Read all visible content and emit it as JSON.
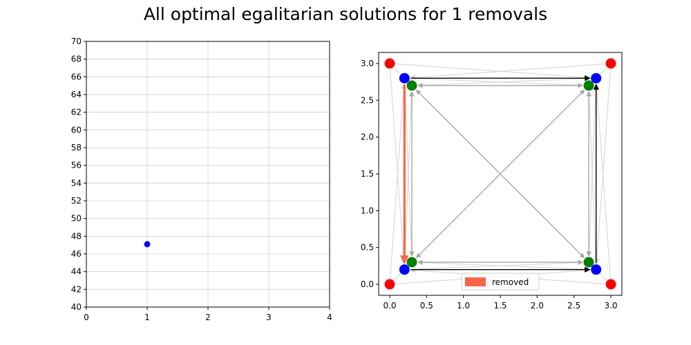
{
  "figure": {
    "title": "All optimal egalitarian solutions for 1 removals"
  },
  "colors": {
    "point": "#0000ff",
    "node_outer": "#ff0000",
    "node_mid": "#0000ff",
    "node_inner": "#008000",
    "edge_removed": "#ff6347",
    "edge_chosen": "#000000",
    "edge_light": "#d9d9d9",
    "edge_mid": "#a6a6a6",
    "grid": "#d0d0d0"
  },
  "chart_data": [
    {
      "type": "scatter",
      "title": "",
      "xlabel": "",
      "ylabel": "",
      "xlim": [
        0,
        4
      ],
      "ylim": [
        40,
        70
      ],
      "xticks": [
        "0",
        "1",
        "2",
        "3",
        "4"
      ],
      "yticks": [
        "40",
        "42",
        "44",
        "46",
        "48",
        "50",
        "52",
        "54",
        "56",
        "58",
        "60",
        "62",
        "64",
        "66",
        "68",
        "70"
      ],
      "grid": true,
      "points": [
        {
          "x": 1,
          "y": 47.1
        }
      ]
    },
    {
      "type": "network",
      "title": "",
      "xlim": [
        -0.15,
        3.15
      ],
      "ylim": [
        -0.15,
        3.15
      ],
      "xticks": [
        "0.0",
        "0.5",
        "1.0",
        "1.5",
        "2.0",
        "2.5",
        "3.0"
      ],
      "yticks": [
        "0.0",
        "0.5",
        "1.0",
        "1.5",
        "2.0",
        "2.5",
        "3.0"
      ],
      "grid": false,
      "legend": {
        "position": "bottom-center",
        "entries": [
          {
            "label": "removed",
            "color": "#ff6347"
          }
        ]
      },
      "nodes": [
        {
          "id": "r_bl",
          "group": "outer",
          "x": 0.0,
          "y": 0.0
        },
        {
          "id": "r_tl",
          "group": "outer",
          "x": 0.0,
          "y": 3.0
        },
        {
          "id": "r_tr",
          "group": "outer",
          "x": 3.0,
          "y": 3.0
        },
        {
          "id": "r_br",
          "group": "outer",
          "x": 3.0,
          "y": 0.0
        },
        {
          "id": "b_bl",
          "group": "mid",
          "x": 0.2,
          "y": 0.2
        },
        {
          "id": "b_tl",
          "group": "mid",
          "x": 0.2,
          "y": 2.8
        },
        {
          "id": "b_tr",
          "group": "mid",
          "x": 2.8,
          "y": 2.8
        },
        {
          "id": "b_br",
          "group": "mid",
          "x": 2.8,
          "y": 0.2
        },
        {
          "id": "g_bl",
          "group": "inner",
          "x": 0.3,
          "y": 0.3
        },
        {
          "id": "g_tl",
          "group": "inner",
          "x": 0.3,
          "y": 2.7
        },
        {
          "id": "g_tr",
          "group": "inner",
          "x": 2.7,
          "y": 2.7
        },
        {
          "id": "g_br",
          "group": "inner",
          "x": 2.7,
          "y": 0.3
        }
      ],
      "edges": [
        {
          "from": "b_tl",
          "to": "b_bl",
          "kind": "removed"
        },
        {
          "from": "b_tl",
          "to": "b_tr",
          "kind": "chosen"
        },
        {
          "from": "b_br",
          "to": "b_tr",
          "kind": "chosen"
        },
        {
          "from": "b_bl",
          "to": "b_br",
          "kind": "chosen"
        },
        {
          "from": "g_tl",
          "to": "g_br",
          "kind": "mid"
        },
        {
          "from": "g_br",
          "to": "g_tl",
          "kind": "mid"
        },
        {
          "from": "g_tr",
          "to": "g_bl",
          "kind": "mid"
        },
        {
          "from": "g_bl",
          "to": "g_tr",
          "kind": "mid"
        },
        {
          "from": "g_tl",
          "to": "g_tr",
          "kind": "mid"
        },
        {
          "from": "g_tr",
          "to": "g_tl",
          "kind": "mid"
        },
        {
          "from": "g_bl",
          "to": "g_br",
          "kind": "mid"
        },
        {
          "from": "g_br",
          "to": "g_bl",
          "kind": "mid"
        },
        {
          "from": "g_tl",
          "to": "g_bl",
          "kind": "mid"
        },
        {
          "from": "g_bl",
          "to": "g_tl",
          "kind": "mid"
        },
        {
          "from": "g_tr",
          "to": "g_br",
          "kind": "mid"
        },
        {
          "from": "g_br",
          "to": "g_tr",
          "kind": "mid"
        },
        {
          "from": "r_tl",
          "to": "g_tl",
          "kind": "light"
        },
        {
          "from": "r_tl",
          "to": "b_tr",
          "kind": "light"
        },
        {
          "from": "r_tl",
          "to": "b_bl",
          "kind": "light"
        },
        {
          "from": "r_tr",
          "to": "g_tr",
          "kind": "light"
        },
        {
          "from": "r_tr",
          "to": "b_tl",
          "kind": "light"
        },
        {
          "from": "r_tr",
          "to": "b_br",
          "kind": "light"
        },
        {
          "from": "r_bl",
          "to": "g_bl",
          "kind": "light"
        },
        {
          "from": "r_bl",
          "to": "b_tl",
          "kind": "light"
        },
        {
          "from": "r_bl",
          "to": "b_br",
          "kind": "light"
        },
        {
          "from": "r_br",
          "to": "g_br",
          "kind": "light"
        },
        {
          "from": "r_br",
          "to": "b_bl",
          "kind": "light"
        },
        {
          "from": "r_br",
          "to": "b_tr",
          "kind": "light"
        },
        {
          "from": "b_tl",
          "to": "g_tr",
          "kind": "light"
        },
        {
          "from": "b_tr",
          "to": "g_tl",
          "kind": "light"
        },
        {
          "from": "b_bl",
          "to": "g_br",
          "kind": "light"
        },
        {
          "from": "b_br",
          "to": "g_bl",
          "kind": "light"
        },
        {
          "from": "b_tl",
          "to": "g_bl",
          "kind": "light"
        },
        {
          "from": "b_bl",
          "to": "g_tl",
          "kind": "light"
        },
        {
          "from": "b_tr",
          "to": "g_br",
          "kind": "light"
        },
        {
          "from": "b_br",
          "to": "g_tr",
          "kind": "light"
        }
      ]
    }
  ]
}
